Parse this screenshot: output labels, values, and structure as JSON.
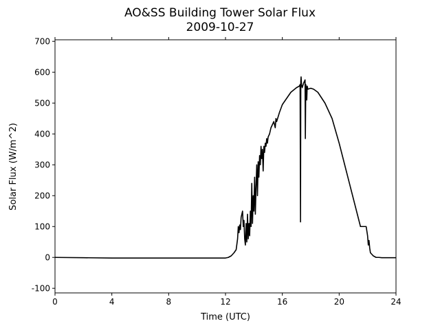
{
  "chart_data": {
    "type": "line",
    "title": "AO&SS Building Tower Solar Flux",
    "subtitle": "2009-10-27",
    "xlabel": "Time (UTC)",
    "ylabel": "Solar Flux (W/m^2)",
    "xlim": [
      0,
      24
    ],
    "ylim": [
      -115,
      705
    ],
    "xticks": [
      0,
      4,
      8,
      12,
      16,
      20,
      24
    ],
    "yticks": [
      -100,
      0,
      100,
      200,
      300,
      400,
      500,
      600,
      700
    ],
    "grid": false,
    "legend": "none",
    "line_color": "#000000",
    "series": [
      {
        "x": [
          0,
          2,
          4,
          6,
          8,
          10,
          12,
          12.2,
          12.4,
          12.6,
          12.75,
          12.85,
          12.9,
          12.95,
          13.0,
          13.05,
          13.1,
          13.15,
          13.2,
          13.25,
          13.3,
          13.35,
          13.4,
          13.45,
          13.5,
          13.55,
          13.6,
          13.65,
          13.7,
          13.75,
          13.8,
          13.85,
          13.9,
          13.95,
          14.0,
          14.05,
          14.1,
          14.15,
          14.2,
          14.25,
          14.3,
          14.35,
          14.4,
          14.45,
          14.5,
          14.55,
          14.6,
          14.65,
          14.7,
          14.75,
          14.8,
          14.85,
          14.9,
          14.95,
          15.0,
          15.1,
          15.2,
          15.4,
          15.5,
          15.55,
          15.6,
          15.8,
          16.0,
          16.3,
          16.6,
          17.0,
          17.2,
          17.25,
          17.28,
          17.3,
          17.32,
          17.35,
          17.4,
          17.5,
          17.6,
          17.62,
          17.65,
          17.7,
          17.72,
          17.75,
          17.8,
          18.0,
          18.2,
          18.5,
          19.0,
          19.5,
          20.0,
          20.5,
          21.0,
          21.5,
          21.9,
          22.0,
          22.05,
          22.1,
          22.15,
          22.2,
          22.3,
          22.4,
          22.6,
          22.8,
          23.0,
          23.2,
          24
        ],
        "y": [
          0,
          -1,
          -2,
          -2,
          -2,
          -2,
          -2,
          0,
          5,
          15,
          25,
          60,
          100,
          80,
          105,
          90,
          130,
          140,
          150,
          100,
          120,
          60,
          40,
          110,
          50,
          140,
          60,
          110,
          70,
          150,
          100,
          240,
          110,
          200,
          150,
          260,
          140,
          230,
          300,
          200,
          310,
          260,
          330,
          300,
          360,
          320,
          350,
          280,
          360,
          340,
          370,
          360,
          385,
          370,
          390,
          400,
          420,
          440,
          420,
          450,
          440,
          470,
          495,
          515,
          535,
          550,
          555,
          560,
          115,
          570,
          585,
          560,
          550,
          565,
          575,
          385,
          560,
          540,
          510,
          555,
          545,
          548,
          545,
          535,
          500,
          450,
          370,
          280,
          190,
          100,
          100,
          70,
          40,
          55,
          30,
          15,
          10,
          5,
          0,
          0,
          -1,
          -1,
          -1
        ]
      }
    ]
  }
}
